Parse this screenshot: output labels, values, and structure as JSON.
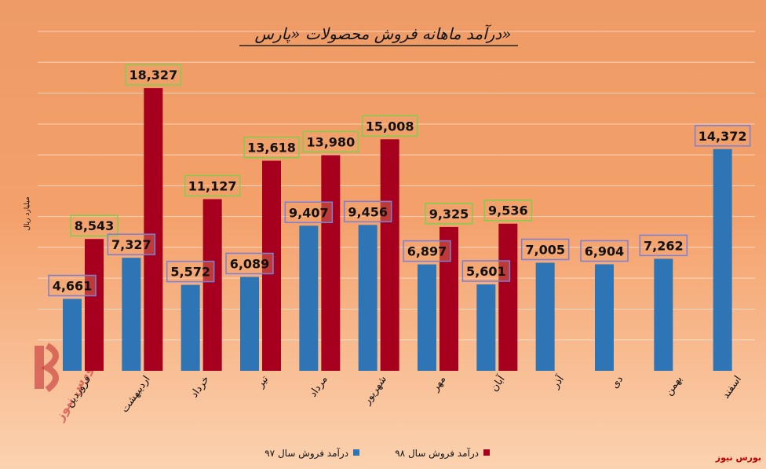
{
  "chart_data": {
    "type": "bar",
    "title": "درآمد ماهانه فروش محصولات «پارس»",
    "ylabel": "میلیارد ریال",
    "categories": [
      "فروردین",
      "اردیبهشت",
      "خرداد",
      "تیر",
      "مرداد",
      "شهریور",
      "مهر",
      "آبان",
      "آذر",
      "دی",
      "بهمن",
      "اسفند"
    ],
    "series": [
      {
        "name": "درآمد فروش سال ۹۷",
        "color": "#2e75b6",
        "values": [
          4661,
          7327,
          5572,
          6089,
          9407,
          9456,
          6897,
          5601,
          7005,
          6904,
          7262,
          14372
        ],
        "labels": [
          "4,661",
          "7,327",
          "5,572",
          "6,089",
          "9,407",
          "9,456",
          "6,897",
          "5,601",
          "7,005",
          "6,904",
          "7,262",
          "14,372"
        ]
      },
      {
        "name": "درآمد فروش سال ۹۸",
        "color": "#a6001e",
        "values": [
          8543,
          18327,
          11127,
          13618,
          13980,
          15008,
          9325,
          9536,
          null,
          null,
          null,
          null
        ],
        "labels": [
          "8,543",
          "18,327",
          "11,127",
          "13,618",
          "13,980",
          "15,008",
          "9,325",
          "9,536",
          null,
          null,
          null,
          null
        ]
      }
    ],
    "ylim": [
      0,
      22000
    ],
    "grid": true,
    "legend_position": "bottom"
  },
  "source": "بورس نیوز",
  "watermark": "بورس نیوز"
}
